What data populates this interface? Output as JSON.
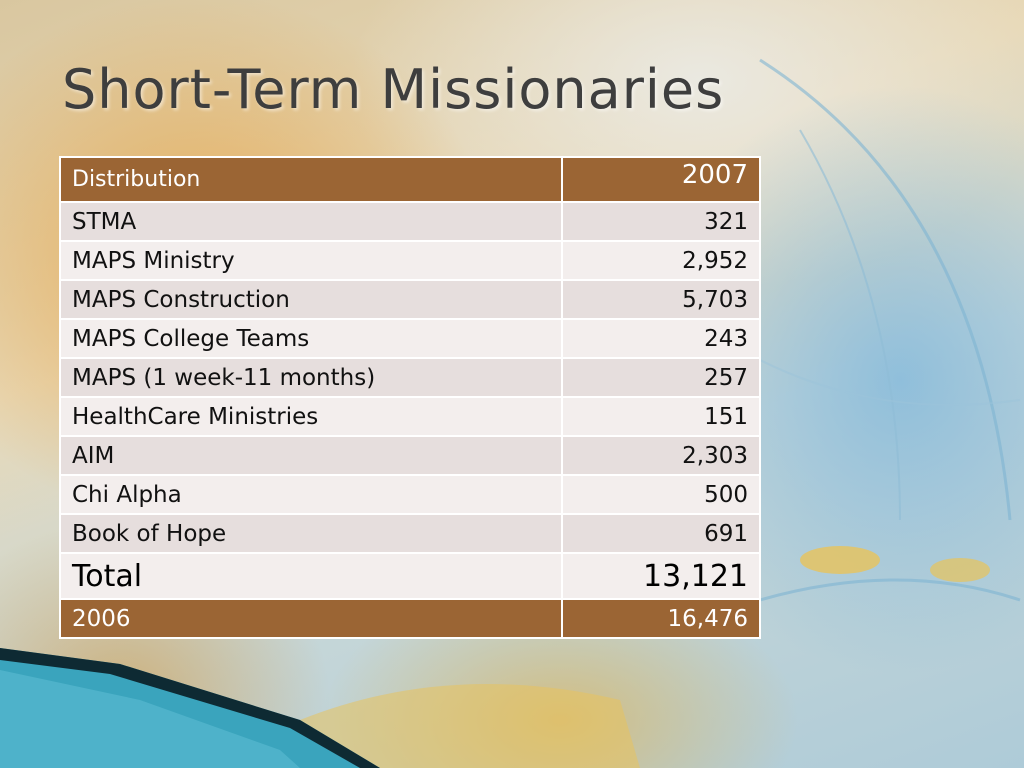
{
  "slide": {
    "title": "Short-Term Missionaries"
  },
  "table": {
    "header": {
      "label": "Distribution",
      "year": "2007"
    },
    "rows": [
      {
        "label": "STMA",
        "value": "321"
      },
      {
        "label": "MAPS Ministry",
        "value": "2,952"
      },
      {
        "label": "MAPS Construction",
        "value": "5,703"
      },
      {
        "label": "MAPS College Teams",
        "value": "243"
      },
      {
        "label": "MAPS (1 week-11 months)",
        "value": "257"
      },
      {
        "label": "HealthCare Ministries",
        "value": "151"
      },
      {
        "label": "AIM",
        "value": "2,303"
      },
      {
        "label": "Chi Alpha",
        "value": "500"
      },
      {
        "label": "Book of Hope",
        "value": "691"
      }
    ],
    "total": {
      "label": "Total",
      "value": "13,121"
    },
    "footer": {
      "label": "2006",
      "value": "16,476"
    }
  },
  "colors": {
    "header_bg": "#9b6534",
    "row_odd": "#e6dedd",
    "row_even": "#f3eeed",
    "corner_teal": "#3aa4bd"
  }
}
